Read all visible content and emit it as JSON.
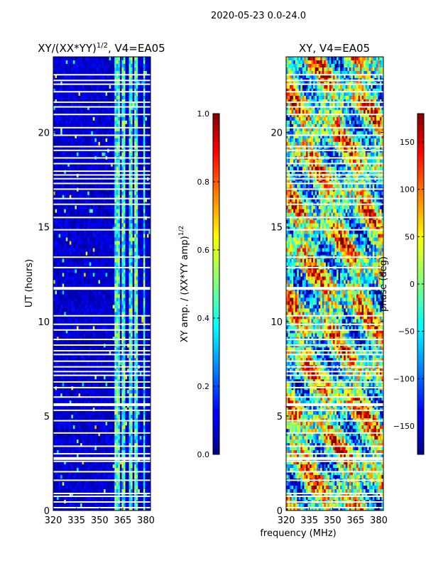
{
  "suptitle": "2020-05-23 0.0-24.0",
  "colors": {
    "frame": "#000000",
    "gap": "#ffffff",
    "low": "#00007f",
    "mid": "#7fff7f",
    "high": "#7f0000"
  },
  "chart_data": [
    {
      "type": "heatmap",
      "title": "XY/(XX*YY)^1/2, V4=EA05",
      "title_main": "XY/(XX*YY)",
      "title_sup": "1/2",
      "title_tail": ", V4=EA05",
      "xlabel": "",
      "ylabel": "UT (hours)",
      "xlim": [
        320,
        383
      ],
      "ylim": [
        0,
        24
      ],
      "xticks": [
        320,
        335,
        350,
        365,
        380
      ],
      "xtick_labels": [
        "320",
        "335",
        "350",
        "365",
        "380"
      ],
      "yticks": [
        0,
        5,
        10,
        15,
        20
      ],
      "ytick_labels": [
        "0",
        "5",
        "10",
        "15",
        "20"
      ],
      "colormap": "jet",
      "colorbar": {
        "label": "XY amp. / (XX*YY amp)^1/2",
        "label_main": "XY amp. / (XX*YY amp)",
        "label_sup": "1/2",
        "range": [
          0.0,
          1.0
        ],
        "ticks": [
          0.0,
          0.2,
          0.4,
          0.6,
          0.8,
          1.0
        ],
        "tick_labels": [
          "0.0",
          "0.2",
          "0.4",
          "0.6",
          "0.8",
          "1.0"
        ]
      },
      "features": {
        "high_amplitude_bands_MHz": [
          [
            360,
            363
          ],
          [
            364,
            367
          ],
          [
            369,
            371
          ],
          [
            373,
            375
          ],
          [
            378,
            380
          ]
        ],
        "mean_value_outside_bands": 0.05,
        "mean_value_in_bands": 0.4
      }
    },
    {
      "type": "heatmap",
      "title": "XY, V4=EA05",
      "xlabel": "frequency (MHz)",
      "ylabel": "",
      "xlim": [
        320,
        383
      ],
      "ylim": [
        0,
        24
      ],
      "xticks": [
        320,
        335,
        350,
        365,
        380
      ],
      "xtick_labels": [
        "320",
        "335",
        "350",
        "365",
        "380"
      ],
      "yticks": [
        0,
        5,
        10,
        15,
        20
      ],
      "ytick_labels": [
        "0",
        "5",
        "10",
        "15",
        "20"
      ],
      "colormap": "jet",
      "colorbar": {
        "label": "phase (deg)",
        "range": [
          -180,
          180
        ],
        "ticks": [
          -150,
          -100,
          -50,
          0,
          50,
          100,
          150
        ],
        "tick_labels": [
          "−150",
          "−100",
          "−50",
          "0",
          "50",
          "100",
          "150"
        ]
      },
      "features": {
        "description": "phase wraps across full range, noisy structure"
      }
    }
  ],
  "flagged_gaps_UT": [
    0.15,
    0.45,
    0.75,
    0.9,
    1.6,
    2.05,
    2.6,
    2.75,
    3.0,
    3.4,
    4.1,
    4.75,
    5.3,
    5.6,
    6.0,
    6.5,
    6.8,
    7.15,
    7.35,
    7.6,
    7.9,
    8.25,
    8.45,
    8.75,
    9.05,
    9.55,
    9.85,
    10.3,
    11.75,
    12.85,
    13.4,
    14.85,
    15.5,
    16.2,
    16.5,
    17.0,
    17.3,
    17.55,
    17.75,
    17.95,
    18.35,
    18.65,
    19.05,
    19.25,
    19.85,
    20.25,
    20.95,
    21.35,
    21.6,
    22.15,
    22.55,
    22.75,
    23.05
  ]
}
